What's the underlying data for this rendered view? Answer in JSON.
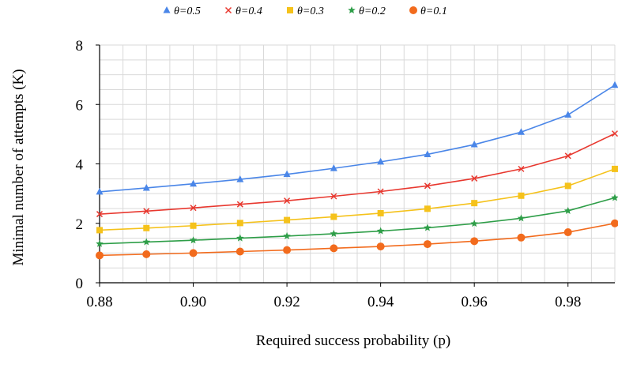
{
  "chart_data": {
    "type": "line",
    "title": "",
    "xlabel": "Required success probability (p)",
    "ylabel": "Minimal number of attempts (K)",
    "x": [
      0.88,
      0.89,
      0.9,
      0.91,
      0.92,
      0.93,
      0.94,
      0.95,
      0.96,
      0.97,
      0.98,
      0.99
    ],
    "xlim": [
      0.88,
      0.99
    ],
    "ylim": [
      0,
      8
    ],
    "x_ticks": [
      "0.88",
      "0.90",
      "0.92",
      "0.94",
      "0.96",
      "0.98"
    ],
    "x_tick_values": [
      0.88,
      0.9,
      0.92,
      0.94,
      0.96,
      0.98
    ],
    "y_ticks": [
      "0",
      "2",
      "4",
      "6",
      "8"
    ],
    "y_tick_values": [
      0,
      2,
      4,
      6,
      8
    ],
    "grid": true,
    "legend_position": "top",
    "series": [
      {
        "name": "θ=0.5",
        "color": "#4a86e8",
        "marker": "triangle",
        "values": [
          3.06,
          3.19,
          3.33,
          3.48,
          3.65,
          3.85,
          4.07,
          4.32,
          4.65,
          5.07,
          5.65,
          6.65
        ]
      },
      {
        "name": "θ=0.4",
        "color": "#e8382f",
        "marker": "x",
        "values": [
          2.31,
          2.41,
          2.52,
          2.64,
          2.76,
          2.91,
          3.07,
          3.26,
          3.51,
          3.83,
          4.27,
          5.02
        ]
      },
      {
        "name": "θ=0.3",
        "color": "#f5c21b",
        "marker": "square",
        "values": [
          1.77,
          1.84,
          1.92,
          2.01,
          2.11,
          2.22,
          2.34,
          2.49,
          2.68,
          2.93,
          3.26,
          3.83
        ]
      },
      {
        "name": "θ=0.2",
        "color": "#2e9e48",
        "marker": "star",
        "values": [
          1.31,
          1.37,
          1.43,
          1.5,
          1.57,
          1.65,
          1.74,
          1.85,
          1.99,
          2.17,
          2.42,
          2.86
        ]
      },
      {
        "name": "θ=0.1",
        "color": "#f26b1d",
        "marker": "circle",
        "values": [
          0.92,
          0.96,
          1.0,
          1.05,
          1.1,
          1.16,
          1.22,
          1.3,
          1.4,
          1.52,
          1.7,
          2.0
        ]
      }
    ]
  }
}
